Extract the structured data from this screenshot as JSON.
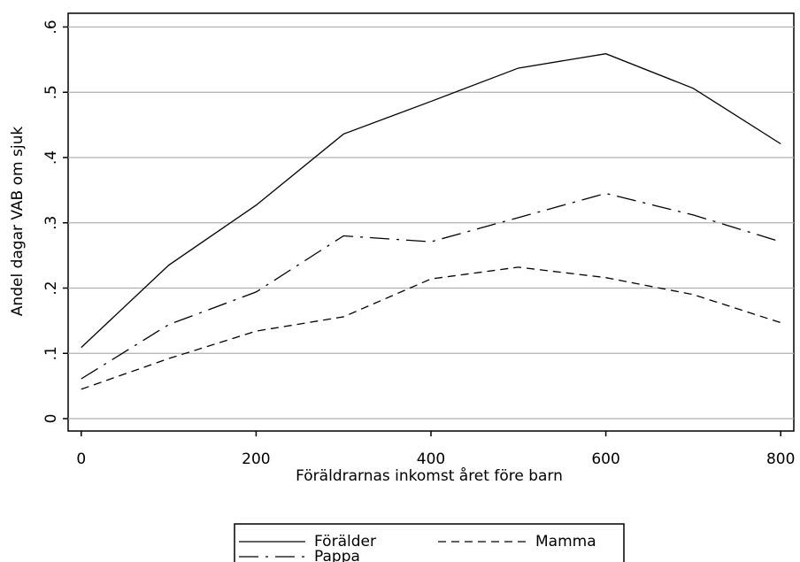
{
  "chart_data": {
    "type": "line",
    "xlabel": "Föräldrarnas inkomst året före barn",
    "ylabel": "Andel dagar VAB om sjuk",
    "x": [
      0,
      100,
      200,
      300,
      400,
      500,
      600,
      700,
      800
    ],
    "series": [
      {
        "name": "Förälder",
        "color": "#000000",
        "dash": "solid",
        "values": [
          0.109,
          0.235,
          0.327,
          0.436,
          0.486,
          0.537,
          0.559,
          0.506,
          0.421
        ]
      },
      {
        "name": "Mamma",
        "color": "#000000",
        "dash": "dash",
        "values": [
          0.045,
          0.092,
          0.134,
          0.156,
          0.214,
          0.232,
          0.216,
          0.19,
          0.147
        ]
      },
      {
        "name": "Pappa",
        "color": "#000000",
        "dash": "longdash-dot",
        "values": [
          0.061,
          0.144,
          0.194,
          0.28,
          0.271,
          0.308,
          0.345,
          0.312,
          0.271
        ]
      }
    ],
    "xlim": [
      -15,
      815
    ],
    "xticks": [
      0,
      200,
      400,
      600,
      800
    ],
    "ylim": [
      -0.019,
      0.621
    ],
    "yticks": [
      0,
      {
        "value": 0.1,
        "label": ".1"
      },
      {
        "value": 0.2,
        "label": ".2"
      },
      {
        "value": 0.3,
        "label": ".3"
      },
      {
        "value": 0.4,
        "label": ".4"
      },
      {
        "value": 0.5,
        "label": ".5"
      },
      {
        "value": 0.6,
        "label": ".6"
      }
    ],
    "grid": true,
    "legend": "bottom"
  }
}
